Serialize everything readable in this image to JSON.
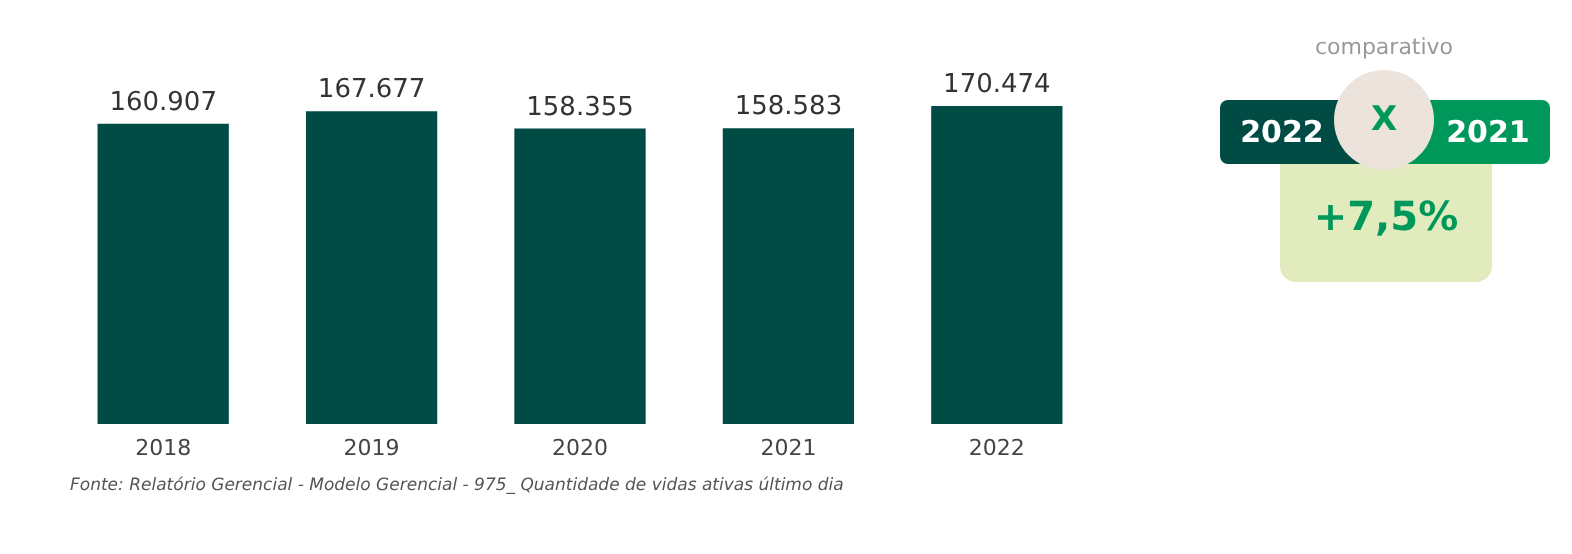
{
  "chart_data": [
    {
      "type": "bar",
      "categories": [
        "2018",
        "2019",
        "2020",
        "2021",
        "2022"
      ],
      "values": [
        160907,
        167677,
        158355,
        158583,
        170474
      ],
      "value_labels": [
        "160.907",
        "167.677",
        "158.355",
        "158.583",
        "170.474"
      ],
      "color": "#014b45",
      "grid": false,
      "annotations": [
        "Fonte: Relatório Gerencial - Modelo Gerencial - 975_ Quantidade de vidas ativas último dia"
      ]
    },
    {
      "type": "other",
      "annotations": [
        "comparativo",
        "2022",
        "X",
        "2021",
        "+7,5%"
      ]
    }
  ]
}
